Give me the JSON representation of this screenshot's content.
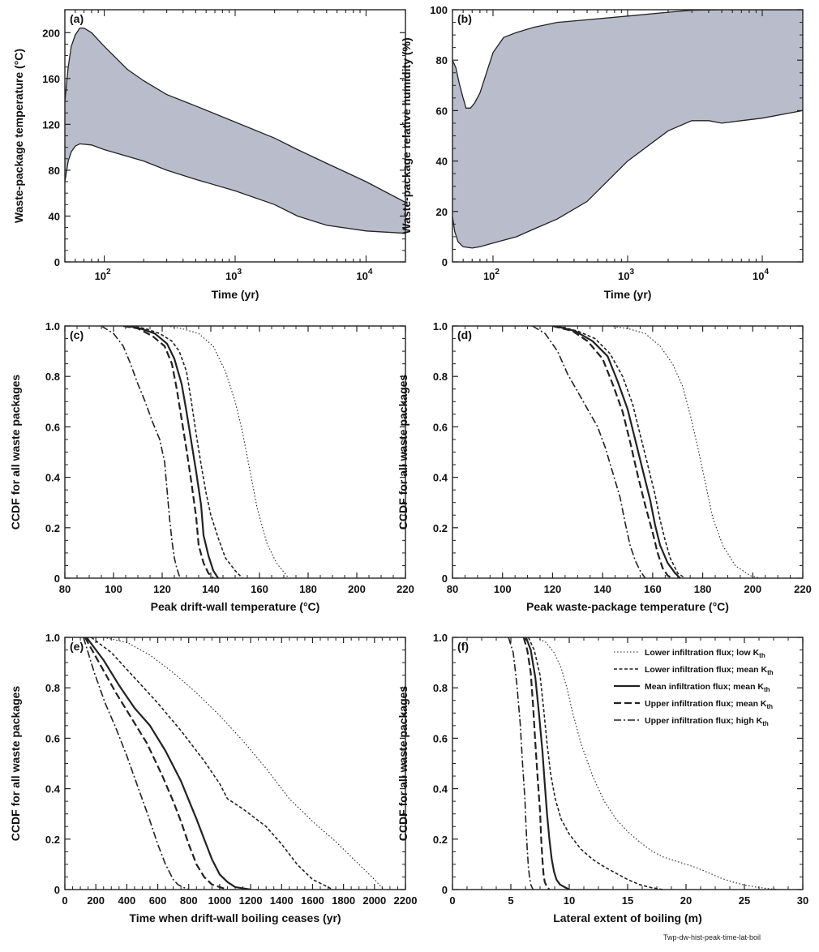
{
  "figure_id": "Twp-dw-hist-peak-time-lat-boil",
  "legend": {
    "entries": [
      {
        "label": "Lower infiltration flux; low K",
        "sub": "th",
        "dash": "1.5,2.5",
        "width": 1.1
      },
      {
        "label": "Lower infiltration flux; mean K",
        "sub": "th",
        "dash": "4,2.5",
        "width": 1.6
      },
      {
        "label": "Mean infiltration flux; mean K",
        "sub": "th",
        "dash": "",
        "width": 2.2
      },
      {
        "label": "Upper infiltration flux; mean K",
        "sub": "th",
        "dash": "9,4",
        "width": 2.2
      },
      {
        "label": "Upper infiltration flux; high K",
        "sub": "th",
        "dash": "9,3,2,3",
        "width": 1.6
      }
    ]
  },
  "chart_data": [
    {
      "id": "a",
      "panel_label": "(a)",
      "type": "area",
      "xscale": "log",
      "xlim": [
        50,
        20000
      ],
      "ylim": [
        0,
        220
      ],
      "xticks": [
        {
          "v": 100,
          "m": "10",
          "e": "2"
        },
        {
          "v": 1000,
          "m": "10",
          "e": "3"
        },
        {
          "v": 10000,
          "m": "10",
          "e": "4"
        }
      ],
      "yticks": [
        0,
        40,
        80,
        120,
        160,
        200
      ],
      "xlabel": "Time (yr)",
      "ylabel": "Waste-package temperature (°C)",
      "upper": [
        [
          50,
          140
        ],
        [
          53,
          170
        ],
        [
          56,
          188
        ],
        [
          60,
          198
        ],
        [
          65,
          204
        ],
        [
          70,
          204
        ],
        [
          80,
          200
        ],
        [
          100,
          188
        ],
        [
          150,
          168
        ],
        [
          200,
          158
        ],
        [
          300,
          146
        ],
        [
          500,
          136
        ],
        [
          1000,
          122
        ],
        [
          2000,
          108
        ],
        [
          3000,
          98
        ],
        [
          5000,
          86
        ],
        [
          10000,
          70
        ],
        [
          20000,
          52
        ]
      ],
      "lower": [
        [
          50,
          70
        ],
        [
          53,
          88
        ],
        [
          56,
          96
        ],
        [
          60,
          101
        ],
        [
          65,
          103
        ],
        [
          80,
          102
        ],
        [
          100,
          98
        ],
        [
          200,
          88
        ],
        [
          300,
          80
        ],
        [
          500,
          72
        ],
        [
          1000,
          62
        ],
        [
          2000,
          50
        ],
        [
          3000,
          40
        ],
        [
          5000,
          32
        ],
        [
          10000,
          27
        ],
        [
          20000,
          25
        ]
      ]
    },
    {
      "id": "b",
      "panel_label": "(b)",
      "type": "area",
      "xscale": "log",
      "xlim": [
        50,
        20000
      ],
      "ylim": [
        0,
        100
      ],
      "xticks": [
        {
          "v": 100,
          "m": "10",
          "e": "2"
        },
        {
          "v": 1000,
          "m": "10",
          "e": "3"
        },
        {
          "v": 10000,
          "m": "10",
          "e": "4"
        }
      ],
      "yticks": [
        0,
        20,
        40,
        60,
        80,
        100
      ],
      "xlabel": "Time (yr)",
      "ylabel": "Waste-package relative humidity (%)",
      "upper": [
        [
          50,
          80
        ],
        [
          53,
          77
        ],
        [
          56,
          71
        ],
        [
          60,
          65
        ],
        [
          63,
          61
        ],
        [
          68,
          61
        ],
        [
          73,
          63
        ],
        [
          80,
          67
        ],
        [
          100,
          83
        ],
        [
          120,
          89
        ],
        [
          150,
          91
        ],
        [
          200,
          93
        ],
        [
          300,
          95
        ],
        [
          500,
          96
        ],
        [
          1000,
          97.5
        ],
        [
          2000,
          99
        ],
        [
          3000,
          99.8
        ],
        [
          5000,
          100
        ],
        [
          10000,
          100
        ],
        [
          20000,
          100
        ]
      ],
      "lower": [
        [
          50,
          18
        ],
        [
          52,
          12
        ],
        [
          55,
          8
        ],
        [
          60,
          6
        ],
        [
          70,
          5.5
        ],
        [
          80,
          6
        ],
        [
          100,
          7.5
        ],
        [
          150,
          10
        ],
        [
          200,
          13
        ],
        [
          300,
          17
        ],
        [
          500,
          24
        ],
        [
          1000,
          40
        ],
        [
          2000,
          52
        ],
        [
          3000,
          56
        ],
        [
          4000,
          56
        ],
        [
          5000,
          55
        ],
        [
          7000,
          56
        ],
        [
          10000,
          57
        ],
        [
          20000,
          60
        ]
      ]
    },
    {
      "id": "c",
      "panel_label": "(c)",
      "type": "line",
      "xlim": [
        80,
        220
      ],
      "ylim": [
        0,
        1
      ],
      "xticks": [
        80,
        100,
        120,
        140,
        160,
        180,
        200,
        220
      ],
      "yticks": [
        0,
        0.2,
        0.4,
        0.6,
        0.8,
        1.0
      ],
      "xlabel": "Peak drift-wall temperature (°C)",
      "ylabel": "CCDF for all waste packages",
      "series": [
        {
          "x": [
            122,
            128,
            135,
            141,
            146,
            150,
            153,
            156,
            159,
            163,
            167,
            172
          ],
          "y": [
            1.0,
            0.99,
            0.97,
            0.92,
            0.82,
            0.7,
            0.58,
            0.43,
            0.28,
            0.14,
            0.06,
            0.0
          ]
        },
        {
          "x": [
            107,
            113,
            119,
            124,
            127,
            130,
            132,
            134,
            136,
            138,
            140,
            143,
            146,
            150,
            153
          ],
          "y": [
            1.0,
            0.99,
            0.97,
            0.94,
            0.9,
            0.82,
            0.7,
            0.57,
            0.45,
            0.34,
            0.25,
            0.16,
            0.08,
            0.03,
            0.0
          ]
        },
        {
          "x": [
            106,
            111,
            117,
            122,
            125,
            128,
            130,
            132,
            134,
            136,
            137,
            139,
            141,
            143
          ],
          "y": [
            1.0,
            0.99,
            0.97,
            0.93,
            0.87,
            0.77,
            0.66,
            0.54,
            0.42,
            0.29,
            0.17,
            0.09,
            0.03,
            0.0
          ]
        },
        {
          "x": [
            104,
            110,
            116,
            121,
            124,
            126,
            128,
            130,
            132,
            134,
            135,
            137,
            139,
            141
          ],
          "y": [
            1.0,
            0.99,
            0.96,
            0.92,
            0.85,
            0.75,
            0.63,
            0.51,
            0.38,
            0.24,
            0.13,
            0.06,
            0.02,
            0.0
          ]
        },
        {
          "x": [
            95,
            100,
            104,
            107,
            110,
            113,
            116,
            119,
            121,
            122,
            123,
            124,
            125,
            126,
            127,
            128
          ],
          "y": [
            1.0,
            0.97,
            0.92,
            0.85,
            0.77,
            0.7,
            0.62,
            0.55,
            0.46,
            0.35,
            0.24,
            0.15,
            0.08,
            0.04,
            0.01,
            0.0
          ]
        }
      ]
    },
    {
      "id": "d",
      "panel_label": "(d)",
      "type": "line",
      "xlim": [
        80,
        220
      ],
      "ylim": [
        0,
        1
      ],
      "xticks": [
        80,
        100,
        120,
        140,
        160,
        180,
        200,
        220
      ],
      "yticks": [
        0,
        0.2,
        0.4,
        0.6,
        0.8,
        1.0
      ],
      "xlabel": "Peak waste-package temperature (°C)",
      "ylabel": "CCDF for all waste packages",
      "series": [
        {
          "x": [
            143,
            150,
            157,
            163,
            168,
            172,
            175,
            178,
            181,
            184,
            188,
            193,
            199,
            203
          ],
          "y": [
            1.0,
            0.99,
            0.97,
            0.92,
            0.85,
            0.76,
            0.65,
            0.52,
            0.38,
            0.24,
            0.13,
            0.05,
            0.01,
            0.0
          ]
        },
        {
          "x": [
            122,
            130,
            137,
            143,
            148,
            152,
            155,
            158,
            161,
            163,
            165,
            167,
            170,
            173
          ],
          "y": [
            1.0,
            0.98,
            0.95,
            0.89,
            0.8,
            0.69,
            0.57,
            0.45,
            0.33,
            0.23,
            0.15,
            0.08,
            0.02,
            0.0
          ]
        },
        {
          "x": [
            121,
            129,
            136,
            142,
            146,
            150,
            153,
            156,
            159,
            161,
            163,
            166,
            169,
            171
          ],
          "y": [
            1.0,
            0.98,
            0.94,
            0.88,
            0.78,
            0.67,
            0.55,
            0.43,
            0.31,
            0.21,
            0.13,
            0.06,
            0.02,
            0.0
          ]
        },
        {
          "x": [
            120,
            128,
            134,
            140,
            144,
            148,
            151,
            154,
            157,
            160,
            162,
            164,
            166,
            168
          ],
          "y": [
            1.0,
            0.98,
            0.94,
            0.87,
            0.77,
            0.66,
            0.54,
            0.41,
            0.29,
            0.18,
            0.1,
            0.04,
            0.01,
            0.0
          ]
        },
        {
          "x": [
            112,
            117,
            122,
            126,
            130,
            134,
            138,
            141,
            144,
            147,
            149,
            151,
            153,
            155,
            157
          ],
          "y": [
            1.0,
            0.97,
            0.9,
            0.81,
            0.74,
            0.67,
            0.6,
            0.52,
            0.42,
            0.32,
            0.22,
            0.13,
            0.07,
            0.03,
            0.0
          ]
        }
      ]
    },
    {
      "id": "e",
      "panel_label": "(e)",
      "type": "line",
      "xlim": [
        0,
        2200
      ],
      "ylim": [
        0,
        1
      ],
      "xticks": [
        0,
        200,
        400,
        600,
        800,
        1000,
        1200,
        1400,
        1600,
        1800,
        2000,
        2200
      ],
      "yticks": [
        0,
        0.2,
        0.4,
        0.6,
        0.8,
        1.0
      ],
      "xlabel": "Time when drift-wall boiling ceases (yr)",
      "ylabel": "CCDF for all waste packages",
      "series": [
        {
          "x": [
            250,
            400,
            550,
            700,
            850,
            1000,
            1150,
            1300,
            1450,
            1600,
            1750,
            1900,
            2000,
            2060
          ],
          "y": [
            1.0,
            0.98,
            0.93,
            0.86,
            0.78,
            0.69,
            0.59,
            0.48,
            0.36,
            0.27,
            0.19,
            0.1,
            0.04,
            0.0
          ]
        },
        {
          "x": [
            170,
            300,
            450,
            600,
            750,
            900,
            1000,
            1050,
            1150,
            1300,
            1400,
            1500,
            1600,
            1700,
            1730
          ],
          "y": [
            1.0,
            0.94,
            0.84,
            0.74,
            0.63,
            0.51,
            0.42,
            0.36,
            0.32,
            0.25,
            0.18,
            0.1,
            0.04,
            0.01,
            0.0
          ]
        },
        {
          "x": [
            140,
            250,
            350,
            450,
            550,
            650,
            750,
            850,
            900,
            950,
            1000,
            1050,
            1100,
            1150,
            1200
          ],
          "y": [
            1.0,
            0.91,
            0.81,
            0.72,
            0.65,
            0.55,
            0.43,
            0.28,
            0.2,
            0.12,
            0.06,
            0.03,
            0.01,
            0.005,
            0.0
          ]
        },
        {
          "x": [
            130,
            230,
            330,
            430,
            530,
            630,
            700,
            750,
            800,
            850,
            900,
            950,
            1000,
            1050
          ],
          "y": [
            1.0,
            0.89,
            0.78,
            0.68,
            0.58,
            0.45,
            0.35,
            0.27,
            0.18,
            0.1,
            0.05,
            0.02,
            0.01,
            0.0
          ]
        },
        {
          "x": [
            120,
            190,
            260,
            330,
            400,
            470,
            540,
            600,
            650,
            700,
            730,
            760,
            800
          ],
          "y": [
            1.0,
            0.86,
            0.74,
            0.64,
            0.53,
            0.41,
            0.29,
            0.18,
            0.1,
            0.04,
            0.02,
            0.01,
            0.0
          ]
        }
      ]
    },
    {
      "id": "f",
      "panel_label": "(f)",
      "type": "line",
      "xlim": [
        0,
        30
      ],
      "ylim": [
        0,
        1
      ],
      "xticks": [
        0,
        5,
        10,
        15,
        20,
        25,
        30
      ],
      "yticks": [
        0,
        0.2,
        0.4,
        0.6,
        0.8,
        1.0
      ],
      "xlabel": "Lateral extent of boiling (m)",
      "ylabel": "CCDF for all waste packages",
      "series": [
        {
          "x": [
            7.2,
            8,
            8.7,
            9.3,
            9.8,
            10.3,
            11,
            12,
            13,
            14,
            15,
            16,
            17,
            18,
            19,
            20,
            21,
            22,
            23,
            24,
            25,
            26,
            27,
            28
          ],
          "y": [
            1.0,
            0.98,
            0.94,
            0.88,
            0.8,
            0.7,
            0.58,
            0.45,
            0.35,
            0.28,
            0.23,
            0.19,
            0.155,
            0.13,
            0.115,
            0.1,
            0.085,
            0.065,
            0.045,
            0.03,
            0.018,
            0.01,
            0.004,
            0.0
          ]
        },
        {
          "x": [
            6.5,
            7,
            7.5,
            7.8,
            8.1,
            8.4,
            8.8,
            9.3,
            10,
            11,
            12,
            13,
            14,
            15,
            16,
            17,
            18
          ],
          "y": [
            1.0,
            0.95,
            0.85,
            0.72,
            0.58,
            0.46,
            0.36,
            0.28,
            0.22,
            0.16,
            0.12,
            0.09,
            0.065,
            0.04,
            0.02,
            0.008,
            0.0
          ]
        },
        {
          "x": [
            6.3,
            6.7,
            7.1,
            7.4,
            7.7,
            7.9,
            8.1,
            8.3,
            8.5,
            8.7,
            8.9,
            9.2,
            9.6,
            10
          ],
          "y": [
            1.0,
            0.95,
            0.84,
            0.7,
            0.55,
            0.42,
            0.3,
            0.2,
            0.12,
            0.07,
            0.04,
            0.02,
            0.01,
            0.0
          ]
        },
        {
          "x": [
            6.1,
            6.4,
            6.7,
            6.9,
            7.1,
            7.3,
            7.5,
            7.6,
            7.7,
            7.8,
            7.9,
            8.1,
            8.3
          ],
          "y": [
            1.0,
            0.95,
            0.86,
            0.73,
            0.58,
            0.44,
            0.31,
            0.2,
            0.12,
            0.06,
            0.03,
            0.01,
            0.0
          ]
        },
        {
          "x": [
            4.8,
            5.2,
            5.5,
            5.8,
            6.0,
            6.2,
            6.3,
            6.4,
            6.5,
            6.6,
            6.7,
            6.8,
            6.9
          ],
          "y": [
            1.0,
            0.94,
            0.82,
            0.66,
            0.5,
            0.36,
            0.25,
            0.16,
            0.09,
            0.05,
            0.02,
            0.01,
            0.0
          ]
        }
      ]
    }
  ]
}
